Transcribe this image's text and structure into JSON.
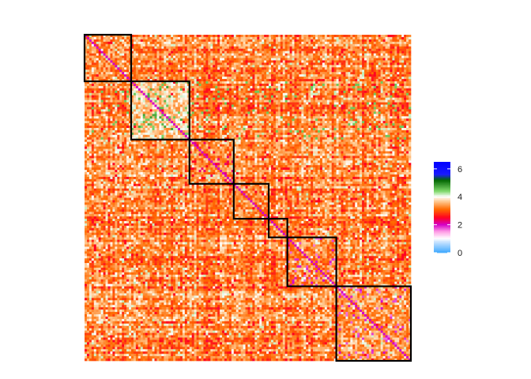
{
  "chart_data": {
    "type": "heatmap",
    "title": "",
    "xlabel": "",
    "ylabel": "",
    "n_rows": 140,
    "n_cols": 140,
    "color_scale": {
      "range": [
        0,
        6.5
      ],
      "stops": [
        {
          "value": 0.0,
          "color": "#3fa9ff"
        },
        {
          "value": 0.8,
          "color": "#cfe6ff"
        },
        {
          "value": 1.0,
          "color": "#ffffff"
        },
        {
          "value": 1.5,
          "color": "#ff9ee6"
        },
        {
          "value": 2.0,
          "color": "#d400c8"
        },
        {
          "value": 2.5,
          "color": "#ff0022"
        },
        {
          "value": 3.1,
          "color": "#ff6a00"
        },
        {
          "value": 3.7,
          "color": "#ffcf9a"
        },
        {
          "value": 4.0,
          "color": "#ffffff"
        },
        {
          "value": 4.4,
          "color": "#7fd96a"
        },
        {
          "value": 5.2,
          "color": "#006400"
        },
        {
          "value": 5.6,
          "color": "#1a1aff"
        },
        {
          "value": 6.5,
          "color": "#0000ff"
        }
      ],
      "legend_ticks": [
        {
          "value": 0,
          "label": "0"
        },
        {
          "value": 2,
          "label": "2"
        },
        {
          "value": 4,
          "label": "4"
        },
        {
          "value": 6,
          "label": "6"
        }
      ],
      "legend_position": "right"
    },
    "clusters": [
      {
        "start": 0,
        "end": 20
      },
      {
        "start": 20,
        "end": 45
      },
      {
        "start": 45,
        "end": 64
      },
      {
        "start": 64,
        "end": 79
      },
      {
        "start": 79,
        "end": 87
      },
      {
        "start": 87,
        "end": 108
      },
      {
        "start": 108,
        "end": 140
      }
    ],
    "background_mean": 3.25,
    "cluster_cell_tint": [
      {
        "cluster": 0,
        "mean": 3.3
      },
      {
        "cluster": 1,
        "mean": 3.7,
        "accent_value": 4.6
      },
      {
        "cluster": 2,
        "mean": 3.3,
        "accent_value": 2.4
      },
      {
        "cluster": 3,
        "mean": 3.3
      },
      {
        "cluster": 4,
        "mean": 3.3
      },
      {
        "cluster": 5,
        "mean": 3.3,
        "accent_value": 1.8
      },
      {
        "cluster": 6,
        "mean": 3.4,
        "accent_value": 1.8
      }
    ]
  }
}
